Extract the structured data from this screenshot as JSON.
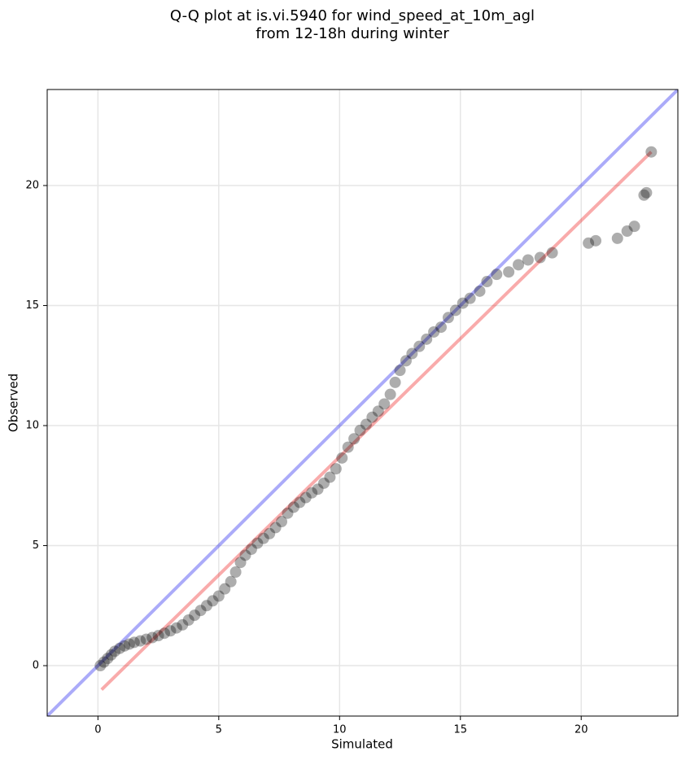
{
  "chart_data": {
    "type": "scatter",
    "title": "Q-Q plot at is.vi.5940 for wind_speed_at_10m_agl",
    "subtitle": "from 12-18h during winter",
    "x_label": "Simulated",
    "y_label": "Observed",
    "xlim": [
      -2.1,
      24
    ],
    "ylim": [
      -2.1,
      24
    ],
    "xticks": [
      0,
      5,
      10,
      15,
      20
    ],
    "yticks": [
      0,
      5,
      10,
      15,
      20
    ],
    "grid": true,
    "series": [
      {
        "color": "#000000",
        "x": [
          0.1,
          0.25,
          0.4,
          0.55,
          0.7,
          0.9,
          1.1,
          1.3,
          1.5,
          1.75,
          2.0,
          2.25,
          2.5,
          2.75,
          3.0,
          3.25,
          3.5,
          3.75,
          4.0,
          4.25,
          4.5,
          4.75,
          5.0,
          5.25,
          5.5,
          5.7,
          5.9,
          6.1,
          6.35,
          6.6,
          6.85,
          7.1,
          7.35,
          7.6,
          7.85,
          8.1,
          8.35,
          8.6,
          8.85,
          9.1,
          9.35,
          9.6,
          9.85,
          10.1,
          10.35,
          10.6,
          10.85,
          11.1,
          11.35,
          11.6,
          11.85,
          12.1,
          12.3,
          12.5,
          12.75,
          13.0,
          13.3,
          13.6,
          13.9,
          14.2,
          14.5,
          14.8,
          15.1,
          15.4,
          15.8,
          16.1,
          16.5,
          17.0,
          17.4,
          17.8,
          18.3,
          18.8,
          20.3,
          20.6,
          21.5,
          21.9,
          22.2,
          22.6,
          22.7,
          22.9
        ],
        "y": [
          0.0,
          0.15,
          0.3,
          0.45,
          0.6,
          0.72,
          0.82,
          0.9,
          0.97,
          1.03,
          1.1,
          1.17,
          1.25,
          1.35,
          1.45,
          1.57,
          1.7,
          1.9,
          2.1,
          2.3,
          2.5,
          2.7,
          2.9,
          3.2,
          3.5,
          3.9,
          4.3,
          4.6,
          4.85,
          5.1,
          5.3,
          5.5,
          5.75,
          6.0,
          6.35,
          6.6,
          6.8,
          7.0,
          7.2,
          7.35,
          7.6,
          7.85,
          8.2,
          8.65,
          9.1,
          9.45,
          9.8,
          10.05,
          10.35,
          10.6,
          10.9,
          11.3,
          11.8,
          12.3,
          12.7,
          13.0,
          13.3,
          13.6,
          13.9,
          14.1,
          14.5,
          14.8,
          15.1,
          15.3,
          15.6,
          16.0,
          16.3,
          16.4,
          16.7,
          16.9,
          17.0,
          17.2,
          17.6,
          17.7,
          17.8,
          18.1,
          18.3,
          19.6,
          19.7,
          21.4
        ]
      }
    ],
    "lines": [
      {
        "color": "#0000ee",
        "x": [
          -2.1,
          24
        ],
        "y": [
          -2.1,
          24
        ]
      },
      {
        "color": "#ee0000",
        "x": [
          0.15,
          22.9
        ],
        "y": [
          -1.0,
          21.4
        ]
      }
    ]
  }
}
